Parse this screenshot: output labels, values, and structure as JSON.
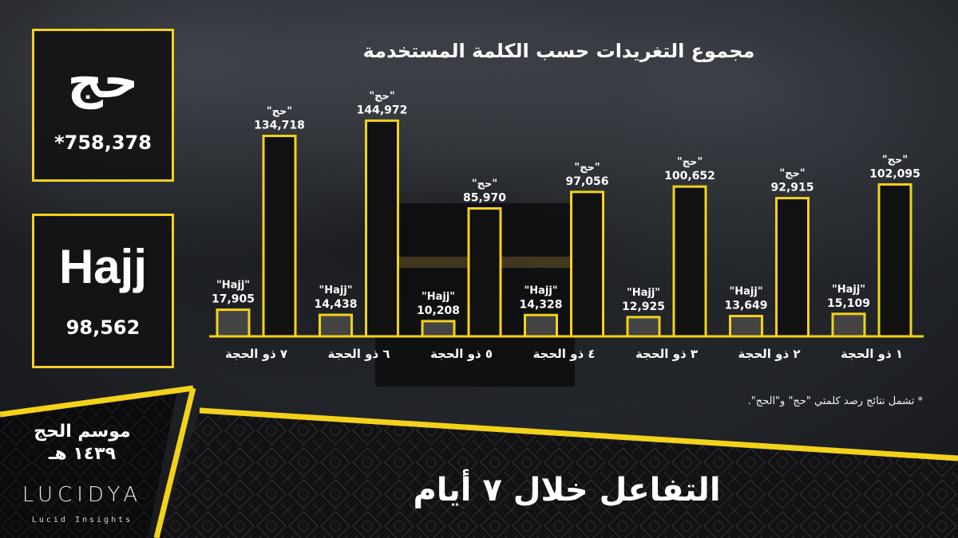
{
  "boxes": {
    "arabic": {
      "word": "حج",
      "total": "*758,378"
    },
    "english": {
      "word": "Hajj",
      "total": "98,562"
    }
  },
  "footnote": "* تشمل نتائج رصد كلمتي \"حج\" و\"الحج\".",
  "banner": {
    "title": "التفاعل خلال ٧ أيام",
    "season_line1": "موسم الحج",
    "season_line2": "١٤٣٩ هـ",
    "brand": "LUCIDYA",
    "tagline": "Lucid Insights"
  },
  "colors": {
    "accent": "#f2d21b",
    "bar_dark": "#111111",
    "bar_grey": "#444444"
  },
  "chart_data": {
    "type": "bar",
    "title": "مجموع التغريدات حسب الكلمة المستخدمة",
    "categories": [
      "٧ ذو الحجة",
      "٦ ذو الحجة",
      "٥ ذو الحجة",
      "٤ ذو الحجة",
      "٣ ذو الحجة",
      "٢ ذو الحجة",
      "١ ذو الحجة"
    ],
    "series": [
      {
        "name": "\"Hajj\"",
        "values": [
          17905,
          14438,
          10208,
          14328,
          12925,
          13649,
          15109
        ]
      },
      {
        "name": "\"حج\"",
        "values": [
          134718,
          144972,
          85970,
          97056,
          100652,
          92915,
          102095
        ]
      }
    ],
    "value_labels": {
      "Hajj": [
        "17,905",
        "14,438",
        "10,208",
        "14,328",
        "12,925",
        "13,649",
        "15,109"
      ],
      "hajj_ar": [
        "134,718",
        "144,972",
        "85,970",
        "97,056",
        "100,652",
        "92,915",
        "102,095"
      ]
    },
    "ylim": [
      0,
      150000
    ],
    "grid": false
  }
}
